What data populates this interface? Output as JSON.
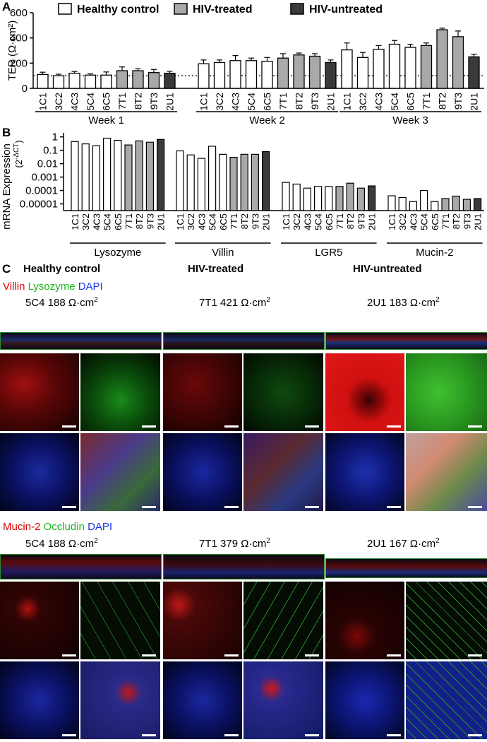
{
  "panel_letters": {
    "a": "A",
    "b": "B",
    "c": "C"
  },
  "colors": {
    "healthy": "#ffffff",
    "treated": "#a9a9a9",
    "untreated": "#3a3a3a",
    "red": "#e00000",
    "green": "#18b818",
    "blue": "#1a35e6"
  },
  "chart_data": [
    {
      "type": "bar",
      "panel": "A",
      "ylabel": "TER (Ω·cm²)",
      "ylim": [
        0,
        600
      ],
      "yticks": [
        "0",
        "200",
        "400",
        "600"
      ],
      "reference_line": 100,
      "legend": [
        {
          "name": "Healthy control",
          "group": "healthy"
        },
        {
          "name": "HIV-treated",
          "group": "treated"
        },
        {
          "name": "HIV-untreated",
          "group": "untreated"
        }
      ],
      "categories": [
        "1C1",
        "3C2",
        "4C3",
        "5C4",
        "6C5",
        "7T1",
        "8T2",
        "9T3",
        "2U1"
      ],
      "groups": [
        "healthy",
        "healthy",
        "healthy",
        "healthy",
        "healthy",
        "treated",
        "treated",
        "treated",
        "untreated"
      ],
      "weeks": [
        {
          "label": "Week 1",
          "values": [
            110,
            100,
            120,
            105,
            105,
            140,
            140,
            125,
            120
          ],
          "errors": [
            18,
            12,
            14,
            10,
            25,
            30,
            15,
            25,
            15
          ]
        },
        {
          "label": "Week 2",
          "values": [
            195,
            205,
            220,
            220,
            215,
            240,
            265,
            255,
            205
          ],
          "errors": [
            30,
            20,
            40,
            20,
            30,
            35,
            15,
            20,
            20
          ]
        },
        {
          "label": "Week 3",
          "values": [
            305,
            245,
            310,
            350,
            325,
            340,
            465,
            410,
            250
          ],
          "errors": [
            55,
            40,
            30,
            30,
            25,
            20,
            12,
            45,
            20
          ]
        }
      ]
    },
    {
      "type": "bar",
      "panel": "B",
      "ylabel": "mRNA Expression",
      "ylabel_unit": "(2",
      "ylabel_sup": "-ΔCT",
      "ylabel_close": ")",
      "scale": "log",
      "yticks": [
        "1",
        "0.1",
        "0.01",
        "0.001",
        "0.0001",
        "0.00001"
      ],
      "categories": [
        "1C1",
        "3C2",
        "4C3",
        "5C4",
        "6C5",
        "7T1",
        "8T2",
        "9T3",
        "2U1"
      ],
      "groups": [
        "healthy",
        "healthy",
        "healthy",
        "healthy",
        "healthy",
        "treated",
        "treated",
        "treated",
        "untreated"
      ],
      "genes": [
        {
          "label": "Lysozyme",
          "values": [
            0.45,
            0.3,
            0.22,
            0.8,
            0.55,
            0.25,
            0.5,
            0.4,
            0.65
          ]
        },
        {
          "label": "Villin",
          "values": [
            0.09,
            0.045,
            0.025,
            0.2,
            0.05,
            0.03,
            0.05,
            0.05,
            0.08
          ]
        },
        {
          "label": "LGR5",
          "values": [
            0.0004,
            0.0003,
            0.00015,
            0.0002,
            0.0002,
            0.0002,
            0.00035,
            0.00015,
            0.00022
          ]
        },
        {
          "label": "Mucin-2",
          "values": [
            4e-05,
            3e-05,
            1.5e-05,
            0.0001,
            1.5e-05,
            2.5e-05,
            3.8e-05,
            2.2e-05,
            2.5e-05
          ]
        }
      ]
    }
  ],
  "panel_c": {
    "group_titles": [
      "Healthy control",
      "HIV-treated",
      "HIV-untreated"
    ],
    "set1": {
      "stain": [
        {
          "text": "Villin",
          "color": "red"
        },
        {
          "text": "Lysozyme",
          "color": "green"
        },
        {
          "text": "DAPI",
          "color": "blue"
        }
      ],
      "ter": [
        "5C4 188 Ω·cm",
        "7T1 421 Ω·cm",
        "2U1 183 Ω·cm"
      ],
      "sup": "2"
    },
    "set2": {
      "stain": [
        {
          "text": "Mucin-2",
          "color": "red"
        },
        {
          "text": "Occludin",
          "color": "green"
        },
        {
          "text": "DAPI",
          "color": "blue"
        }
      ],
      "ter": [
        "5C4 188 Ω·cm",
        "7T1 379 Ω·cm",
        "2U1 167 Ω·cm"
      ],
      "sup": "2"
    }
  }
}
